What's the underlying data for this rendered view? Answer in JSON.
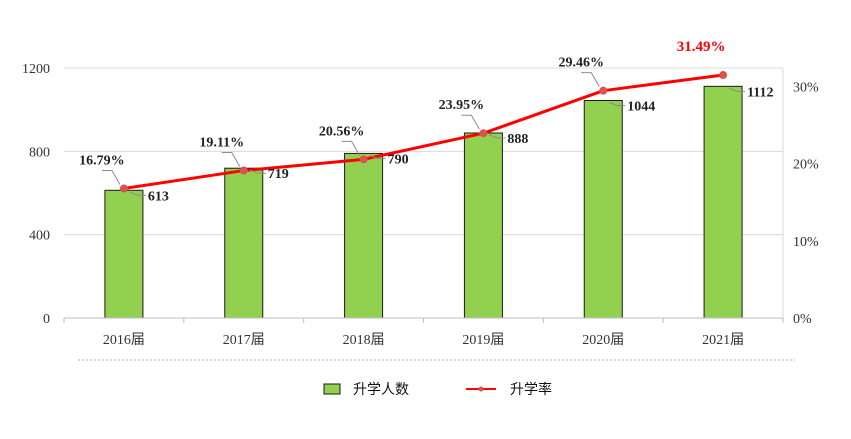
{
  "chart_data": {
    "type": "bar",
    "categories": [
      "2016届",
      "2017届",
      "2018届",
      "2019届",
      "2020届",
      "2021届"
    ],
    "series": [
      {
        "name": "升学人数",
        "type": "bar",
        "axis": "left",
        "values": [
          613,
          719,
          790,
          888,
          1044,
          1112
        ],
        "labels": [
          "613",
          "719",
          "790",
          "888",
          "1044",
          "1112"
        ]
      },
      {
        "name": "升学率",
        "type": "line",
        "axis": "right",
        "values": [
          16.79,
          19.11,
          20.56,
          23.95,
          29.46,
          31.49
        ],
        "labels": [
          "16.79%",
          "19.11%",
          "20.56%",
          "23.95%",
          "29.46%",
          "31.49%"
        ]
      }
    ],
    "y_left": {
      "ticks": [
        "0",
        "400",
        "800",
        "1200"
      ],
      "range": [
        0,
        1200
      ]
    },
    "y_right": {
      "ticks": [
        "0%",
        "10%",
        "20%",
        "30%"
      ],
      "range": [
        0,
        32.4
      ]
    },
    "highlight_label_index": 5,
    "grid": true,
    "legend_position": "bottom"
  },
  "colors": {
    "bar_fill": "#92d050",
    "bar_stroke": "#1a1a1a",
    "line": "#ff0000",
    "marker": "#d9534f",
    "highlight": "#ff0000",
    "grid": "#d9d9d9",
    "leader": "#8c8c8c"
  }
}
